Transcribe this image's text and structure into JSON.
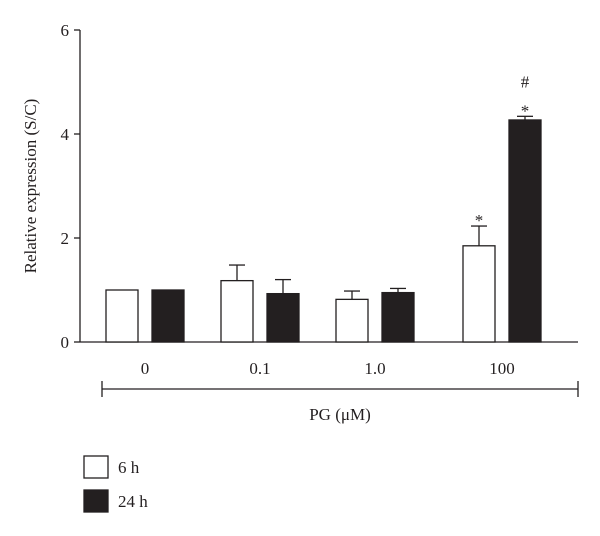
{
  "chart_data": {
    "type": "bar",
    "categories": [
      "0",
      "0.1",
      "1.0",
      "100"
    ],
    "xlabel": "PG (μM)",
    "ylabel": "Relative expression (S/C)",
    "ylim": [
      0,
      6
    ],
    "yticks": [
      "0",
      "2",
      "4",
      "6"
    ],
    "series": [
      {
        "name": "6 h",
        "color": "#ffffff",
        "values": [
          1.0,
          1.18,
          0.82,
          1.85
        ],
        "errors": [
          0.0,
          0.3,
          0.16,
          0.38
        ],
        "annotations": [
          "",
          "",
          "",
          "*"
        ]
      },
      {
        "name": "24 h",
        "color": "#231f20",
        "values": [
          1.0,
          0.93,
          0.95,
          4.27
        ],
        "errors": [
          0.0,
          0.27,
          0.08,
          0.07
        ],
        "annotations": [
          "",
          "",
          "",
          "*\n#"
        ]
      }
    ],
    "legend_position": "bottom-left",
    "grid": false
  }
}
